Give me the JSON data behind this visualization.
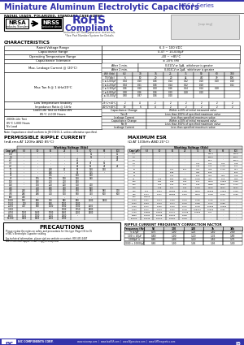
{
  "title": "Miniature Aluminum Electrolytic Capacitors",
  "series": "NRSA Series",
  "subtitle": "RADIAL LEADS, POLARIZED, STANDARD CASE SIZING",
  "bg_color": "#ffffff",
  "header_blue": "#3333aa",
  "dark_blue": "#222288",
  "table_header_bg": "#d8d8d8",
  "border_color": "#000000",
  "char_rows": [
    [
      "Rated Voltage Range",
      "6.3 ~ 100 VDC"
    ],
    [
      "Capacitance Range",
      "0.47 ~ 10,000µF"
    ],
    [
      "Operating Temperature Range",
      "-40 ~ +85°C"
    ],
    [
      "Capacitance Tolerance",
      "± 20% (M)"
    ]
  ],
  "vdc_header": [
    "WV (Vdc)",
    "6.3",
    "10",
    "16",
    "25",
    "35",
    "50",
    "63",
    "100"
  ],
  "ts_row": [
    "TS (Vdc)",
    "6",
    "10",
    "20",
    "20",
    "44",
    "4.0",
    "79",
    "100"
  ],
  "tan_c_rows": [
    [
      "C ≤ 1,000µF",
      "0.24",
      "0.20",
      "0.16",
      "0.14",
      "0.12",
      "0.10",
      "0.10",
      "0.10"
    ],
    [
      "C ≤ 2,200µF",
      "0.24",
      "0.21",
      "0.16",
      "0.14",
      "0.12",
      "0.10",
      "",
      "0.11"
    ],
    [
      "C ≤ 3,300µF",
      "0.26",
      "0.20",
      "0.20",
      "0.16",
      "0.14",
      "0.14",
      "0.18",
      ""
    ],
    [
      "C ≤ 6,800µF",
      "0.38",
      "0.26",
      "0.26",
      "0.20",
      "0.18",
      "0.20",
      "",
      ""
    ],
    [
      "C ≤ 10,000µF",
      "0.80",
      "0.37",
      "0.26",
      "0.20",
      "",
      "",
      "",
      ""
    ]
  ],
  "imp_row1": [
    "-25°C/+20°C",
    "2",
    "4",
    "2",
    "2",
    "2",
    "2",
    "2",
    "2"
  ],
  "imp_row2": [
    "-40°C/+20°C",
    "10",
    "6",
    "4",
    "2",
    "2",
    "2",
    "2",
    "2"
  ],
  "prc_cols": [
    "Cap (µF)",
    "6.3",
    "10",
    "16",
    "25",
    "35",
    "50",
    "63",
    "100"
  ],
  "prc_rows": [
    [
      "0.47",
      "-",
      "-",
      "-",
      "-",
      "-",
      "10",
      "-",
      "11"
    ],
    [
      "1.0",
      "-",
      "-",
      "-",
      "-",
      "-",
      "12",
      "-",
      "35"
    ],
    [
      "2.2",
      "-",
      "-",
      "-",
      "-",
      "20",
      "-",
      "-",
      "26"
    ],
    [
      "3.3",
      "-",
      "-",
      "-",
      "-",
      "25",
      "35",
      "55",
      ""
    ],
    [
      "4.7",
      "-",
      "-",
      "-",
      "-",
      "25",
      "55",
      "45",
      "45"
    ],
    [
      "10",
      "-",
      "-",
      "240",
      "70",
      "85",
      "150",
      "130",
      ""
    ],
    [
      "22",
      "-",
      "-",
      "280",
      "-",
      "85",
      "155",
      "-",
      ""
    ],
    [
      "33",
      "-",
      "-",
      "305",
      "-",
      "100",
      "160",
      "",
      ""
    ],
    [
      "47",
      "-",
      "175",
      "175",
      "100",
      "160",
      "190",
      "",
      ""
    ],
    [
      "100",
      "-",
      "190",
      "210",
      "210",
      "250",
      "",
      "",
      ""
    ],
    [
      "150",
      "-",
      "170",
      "210",
      "200",
      "300",
      "400",
      "",
      ""
    ],
    [
      "220",
      "-",
      "210",
      "260",
      "270",
      "420",
      "560",
      "",
      ""
    ],
    [
      "330",
      "240",
      "240",
      "300",
      "400",
      "470",
      "540",
      "580",
      "700"
    ],
    [
      "470",
      "280",
      "280",
      "410",
      "510",
      "590",
      "720",
      "800",
      "800"
    ],
    [
      "680",
      "440",
      "-",
      "-",
      "-",
      "-",
      "-",
      "",
      ""
    ],
    [
      "1,000",
      "570",
      "980",
      "790",
      "900",
      "980",
      "1100",
      "1800",
      ""
    ],
    [
      "1,500",
      "700",
      "810",
      "870",
      "1000",
      "1200",
      "",
      "",
      ""
    ],
    [
      "2,200",
      "410",
      "840",
      "1100",
      "1300",
      "1700",
      "2000",
      "",
      ""
    ],
    [
      "3,300",
      "-",
      "-",
      "-",
      "1700",
      "1750",
      "2500",
      "",
      ""
    ],
    [
      "4,700",
      "1000",
      "1500",
      "1700",
      "1900",
      "2000",
      "2500",
      "",
      ""
    ],
    [
      "6,800",
      "1600",
      "1700",
      "2000",
      "2500",
      "-",
      "",
      "",
      ""
    ],
    [
      "10,000",
      "1900",
      "1900",
      "2000",
      "2700",
      "",
      "",
      "",
      ""
    ]
  ],
  "esr_cols": [
    "Cap (µF)",
    "6.3",
    "10",
    "16",
    "25",
    "35",
    "50",
    "63",
    "100"
  ],
  "esr_rows": [
    [
      "0.47",
      "-",
      "-",
      "-",
      "-",
      "-",
      "895.3",
      "-",
      "490.8"
    ],
    [
      "1.0",
      "-",
      "-",
      "-",
      "-",
      "-",
      "688.5",
      "-",
      "1038"
    ],
    [
      "2.2",
      "-",
      "-",
      "-",
      "-",
      "-",
      "75.4",
      "-",
      "160.4"
    ],
    [
      "3.3",
      "-",
      "-",
      "-",
      "-",
      "7.04",
      "3.04",
      "7.00",
      "4.08"
    ],
    [
      "4.7",
      "-",
      "-",
      "-",
      "-",
      "7.98",
      "3.26",
      "6.718",
      "5.04"
    ],
    [
      "10",
      "-",
      "-",
      "24.5",
      "10.5",
      "7.64",
      "7.58",
      "6.718",
      "13.2"
    ],
    [
      "22",
      "-",
      "-",
      "8.08",
      "-",
      "7.84",
      "5.09",
      "-",
      "5.04"
    ],
    [
      "33",
      "-",
      "-",
      "6.09",
      "-",
      "5.09",
      "4.50",
      "4.50",
      "4.08"
    ],
    [
      "47",
      "-",
      "7.05",
      "5.69",
      "4.59",
      "0.248",
      "4.52",
      "0.18",
      "2.85"
    ],
    [
      "100",
      "-",
      "4.84",
      "2.98",
      "2.40",
      "1.11",
      "0.504",
      "0.4521",
      "0.409"
    ],
    [
      "150",
      "-",
      "1.40",
      "1.42",
      "1.24",
      "1.08",
      "0.880",
      "0.800",
      "0.710"
    ],
    [
      "220",
      "-",
      "1.48",
      "1.21",
      "1.05",
      "0.754",
      "0.575",
      "0.504",
      "0.504"
    ],
    [
      "330",
      "1.11",
      "0.904",
      "0.6085",
      "0.759",
      "0.504",
      "0.5505",
      "0.4521",
      "0.409"
    ],
    [
      "470",
      "0.777",
      "0.471",
      "0.5085",
      "0.494",
      "0.624",
      "0.248",
      "0.218",
      "0.265"
    ],
    [
      "680",
      "0.6025",
      "-",
      "-",
      "-",
      "-",
      "-",
      "-",
      "-"
    ],
    [
      "1,000",
      "0.461",
      "0.314",
      "0.268",
      "0.203",
      "0.188",
      "0.165",
      "0.170",
      "-"
    ],
    [
      "1,500",
      "0.263",
      "0.243",
      "0.177",
      "0.163",
      "0.088",
      "0.111",
      "0.088",
      "-"
    ],
    [
      "2,200",
      "0.141",
      "0.156",
      "0.126",
      "0.121",
      "0.148",
      "0.0905",
      "0.0663",
      "-"
    ],
    [
      "3,300",
      "0.111",
      "0.114",
      "0.101",
      "0.118",
      "0.08024",
      "0.0509",
      "0.065",
      "-"
    ],
    [
      "4,700",
      "0.0888",
      "0.0863",
      "0.0717",
      "0.0708",
      "0.0505",
      "0.07",
      "-",
      "-"
    ],
    [
      "6,800",
      "0.0791",
      "0.0708",
      "0.0672",
      "0.059",
      "-",
      "-",
      "-",
      "-"
    ],
    [
      "10,000",
      "0.0445",
      "0.0414",
      "0.0064",
      "0.01d",
      "-",
      "-",
      "-",
      "-"
    ]
  ],
  "rcf_cols": [
    "Frequency (Hz)",
    "50",
    "120",
    "300",
    "1k",
    "10k"
  ],
  "rcf_rows": [
    [
      "< 47µF",
      "0.75",
      "1.00",
      "1.25",
      "1.50",
      "2.00"
    ],
    [
      "100 < 47µF",
      "0.80",
      "1.00",
      "1.20",
      "1.35",
      "1.90"
    ],
    [
      "1000µF <",
      "0.85",
      "1.00",
      "1.10",
      "1.50",
      "1.75"
    ],
    [
      "2000 < 10000µF",
      "0.85",
      "1.00",
      "1.05",
      "1.05",
      "1.00"
    ]
  ]
}
